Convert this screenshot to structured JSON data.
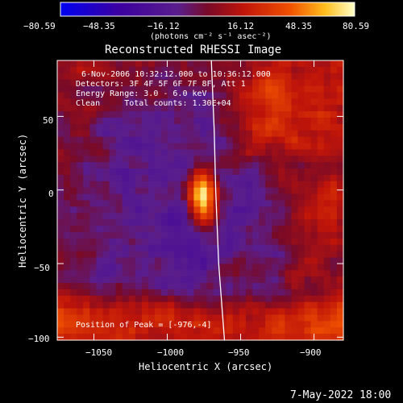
{
  "colorbar": {
    "ticks": [
      "−80.59",
      "−48.35",
      "−16.12",
      "16.12",
      "48.35",
      "80.59"
    ],
    "unit_label": "(photons cm⁻² s⁻¹ asec⁻²)",
    "range": [
      -80.59,
      80.59
    ]
  },
  "plot": {
    "title": "Reconstructed RHESSI Image",
    "info_lines": [
      "6-Nov-2006 10:32:12.000 to 10:36:12.000",
      "Detectors: 3F 4F 5F 6F 7F 8F, Att 1",
      "Energy Range: 3.0 - 6.0 keV",
      "Clean     Total counts: 1.30E+04"
    ],
    "peak_text": "Position of Peak = [-976,-4]",
    "footer_date": "7-May-2022 18:00"
  },
  "chart_data": {
    "type": "heatmap",
    "title": "Reconstructed RHESSI Image",
    "xlabel": "Heliocentric X (arcsec)",
    "ylabel": "Heliocentric Y (arcsec)",
    "xlim": [
      -1075,
      -880
    ],
    "ylim": [
      -102,
      88
    ],
    "xticks": [
      -1050,
      -1000,
      -950,
      -900
    ],
    "yticks": [
      -100,
      -50,
      0,
      50
    ],
    "xtick_labels": [
      "−1050",
      "−1000",
      "−950",
      "−900"
    ],
    "ytick_labels": [
      "−100",
      "−50",
      "0",
      "50"
    ],
    "peak": {
      "x": -976,
      "y": -4
    },
    "value_range": [
      -80.59,
      80.59
    ],
    "limb_points": [
      [
        -970,
        88
      ],
      [
        -968,
        40
      ],
      [
        -967,
        0
      ],
      [
        -965,
        -50
      ],
      [
        -961,
        -102
      ]
    ]
  }
}
